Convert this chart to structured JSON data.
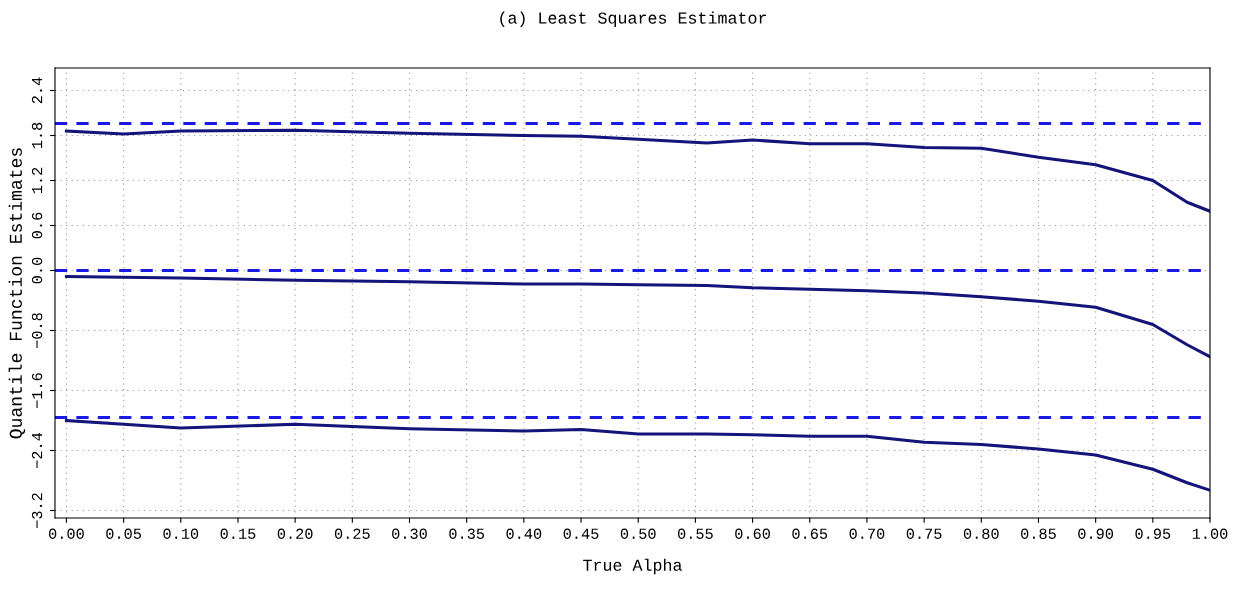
{
  "chart_data": {
    "type": "line",
    "title": "(a) Least Squares Estimator",
    "xlabel": "True Alpha",
    "ylabel": "Quantile Function Estimates",
    "x": [
      0,
      0.05,
      0.1,
      0.2,
      0.3,
      0.4,
      0.45,
      0.5,
      0.56,
      0.6,
      0.65,
      0.7,
      0.75,
      0.8,
      0.85,
      0.9,
      0.95,
      0.98,
      1.0
    ],
    "series": [
      {
        "color": "#14147a",
        "values": [
          1.86,
          1.82,
          1.86,
          1.87,
          1.83,
          1.8,
          1.79,
          1.75,
          1.7,
          1.74,
          1.69,
          1.69,
          1.64,
          1.63,
          1.51,
          1.41,
          1.2,
          0.91,
          0.79
        ]
      },
      {
        "color": "#14147a",
        "values": [
          -0.08,
          -0.09,
          -0.1,
          -0.13,
          -0.15,
          -0.18,
          -0.18,
          -0.19,
          -0.2,
          -0.23,
          -0.25,
          -0.27,
          -0.3,
          -0.35,
          -0.41,
          -0.49,
          -0.72,
          -0.99,
          -1.15
        ]
      },
      {
        "color": "#14147a",
        "values": [
          -2.0,
          -2.05,
          -2.1,
          -2.05,
          -2.11,
          -2.14,
          -2.12,
          -2.18,
          -2.18,
          -2.19,
          -2.21,
          -2.21,
          -2.29,
          -2.32,
          -2.38,
          -2.46,
          -2.65,
          -2.83,
          -2.93
        ]
      }
    ],
    "ref_lines": [
      {
        "axis": "y",
        "value": 1.96,
        "color": "#1a1ae6",
        "line_style": "dashed"
      },
      {
        "axis": "y",
        "value": 0,
        "color": "#1a1ae6",
        "line_style": "dashed"
      },
      {
        "axis": "y",
        "value": -1.96,
        "color": "#1a1ae6",
        "line_style": "dashed"
      }
    ],
    "xlim": [
      -0.01,
      1.0
    ],
    "xticks": [
      {
        "value": 0,
        "label": "0.00"
      },
      {
        "value": 0.05,
        "label": "0.05"
      },
      {
        "value": 0.1,
        "label": "0.10"
      },
      {
        "value": 0.15,
        "label": "0.15"
      },
      {
        "value": 0.2,
        "label": "0.20"
      },
      {
        "value": 0.25,
        "label": "0.25"
      },
      {
        "value": 0.3,
        "label": "0.30"
      },
      {
        "value": 0.35,
        "label": "0.35"
      },
      {
        "value": 0.4,
        "label": "0.40"
      },
      {
        "value": 0.45,
        "label": "0.45"
      },
      {
        "value": 0.5,
        "label": "0.50"
      },
      {
        "value": 0.55,
        "label": "0.55"
      },
      {
        "value": 0.6,
        "label": "0.60"
      },
      {
        "value": 0.65,
        "label": "0.65"
      },
      {
        "value": 0.7,
        "label": "0.70"
      },
      {
        "value": 0.75,
        "label": "0.75"
      },
      {
        "value": 0.8,
        "label": "0.80"
      },
      {
        "value": 0.85,
        "label": "0.85"
      },
      {
        "value": 0.9,
        "label": "0.90"
      },
      {
        "value": 0.95,
        "label": "0.95"
      },
      {
        "value": 1.0,
        "label": "1.00"
      }
    ],
    "ylim": [
      -3.3,
      2.7
    ],
    "yticks": [
      {
        "value": -3.2,
        "label": "−3.2"
      },
      {
        "value": -2.4,
        "label": "−2.4"
      },
      {
        "value": -1.6,
        "label": "−1.6"
      },
      {
        "value": -0.8,
        "label": "−0.8"
      },
      {
        "value": 0,
        "label": "0.0"
      },
      0.6,
      1.2,
      1.8,
      2.4
    ],
    "grid": true,
    "line_style": "solid",
    "marker": "none"
  }
}
